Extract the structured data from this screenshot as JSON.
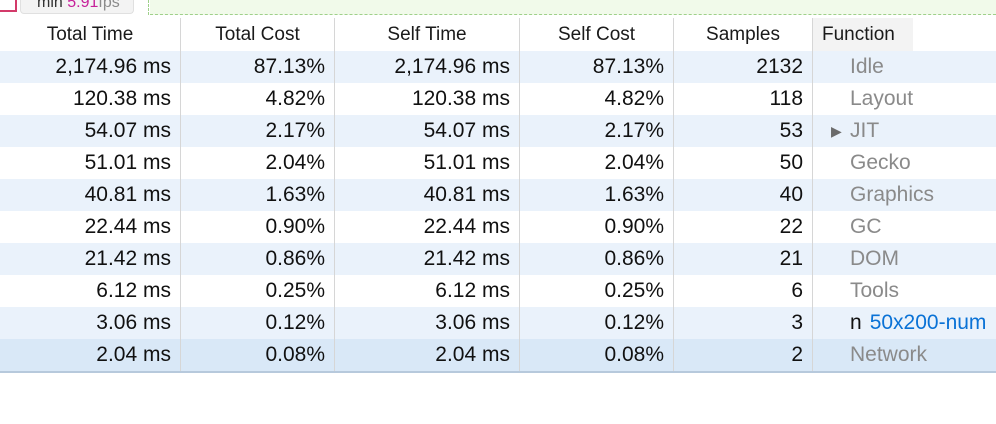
{
  "fps": {
    "prefix": "min",
    "value": "5.91",
    "unit": "fps"
  },
  "columns": {
    "total_time": "Total Time",
    "total_cost": "Total Cost",
    "self_time": "Self Time",
    "self_cost": "Self Cost",
    "samples": "Samples",
    "function": "Function"
  },
  "rows": [
    {
      "total_time": "2,174.96 ms",
      "total_cost": "87.13%",
      "self_time": "2,174.96 ms",
      "self_cost": "87.13%",
      "samples": "2132",
      "function": "Idle"
    },
    {
      "total_time": "120.38 ms",
      "total_cost": "4.82%",
      "self_time": "120.38 ms",
      "self_cost": "4.82%",
      "samples": "118",
      "function": "Layout"
    },
    {
      "total_time": "54.07 ms",
      "total_cost": "2.17%",
      "self_time": "54.07 ms",
      "self_cost": "2.17%",
      "samples": "53",
      "function": "JIT",
      "twisty": "▶"
    },
    {
      "total_time": "51.01 ms",
      "total_cost": "2.04%",
      "self_time": "51.01 ms",
      "self_cost": "2.04%",
      "samples": "50",
      "function": "Gecko"
    },
    {
      "total_time": "40.81 ms",
      "total_cost": "1.63%",
      "self_time": "40.81 ms",
      "self_cost": "1.63%",
      "samples": "40",
      "function": "Graphics"
    },
    {
      "total_time": "22.44 ms",
      "total_cost": "0.90%",
      "self_time": "22.44 ms",
      "self_cost": "0.90%",
      "samples": "22",
      "function": "GC"
    },
    {
      "total_time": "21.42 ms",
      "total_cost": "0.86%",
      "self_time": "21.42 ms",
      "self_cost": "0.86%",
      "samples": "21",
      "function": "DOM"
    },
    {
      "total_time": "6.12 ms",
      "total_cost": "0.25%",
      "self_time": "6.12 ms",
      "self_cost": "0.25%",
      "samples": "6",
      "function": "Tools"
    },
    {
      "total_time": "3.06 ms",
      "total_cost": "0.12%",
      "self_time": "3.06 ms",
      "self_cost": "0.12%",
      "samples": "3",
      "function": "n",
      "link": "50x200-num"
    },
    {
      "total_time": "2.04 ms",
      "total_cost": "0.08%",
      "self_time": "2.04 ms",
      "self_cost": "0.08%",
      "samples": "2",
      "function": "Network"
    }
  ],
  "colors": {
    "fps_value": "#c6219a",
    "row_stripe": "#eaf2fb",
    "selected_row": "#d9e8f7",
    "function_text": "#8a8a8a",
    "link": "#0a72d6"
  }
}
